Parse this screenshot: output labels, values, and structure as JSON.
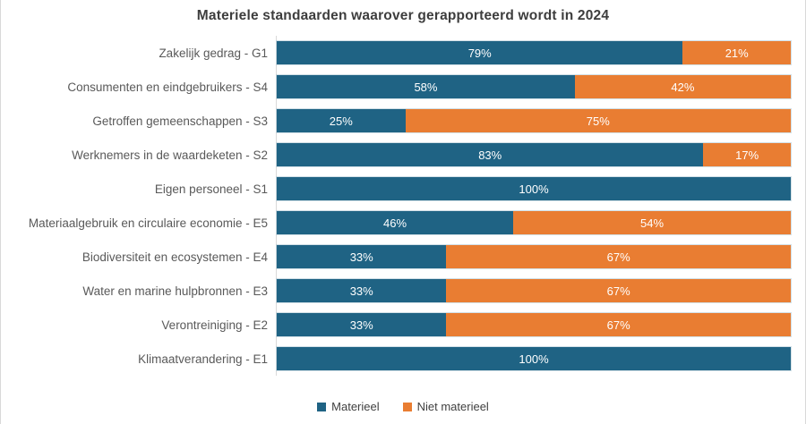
{
  "title": "Materiele standaarden waarover gerapporteerd wordt in 2024",
  "colors": {
    "materieel": "#1f6384",
    "niet_materieel": "#e97d32",
    "axis_line": "#d9d9d9",
    "label_text": "#595959",
    "title_text": "#3d3d3d",
    "value_text": "#ffffff"
  },
  "legend": {
    "items": [
      {
        "label": "Materieel",
        "color": "#1f6384"
      },
      {
        "label": "Niet materieel",
        "color": "#e97d32"
      }
    ]
  },
  "chart_data": {
    "type": "bar",
    "orientation": "horizontal",
    "stacked": true,
    "title": "Materiele standaarden waarover gerapporteerd wordt in 2024",
    "xlabel": "",
    "ylabel": "",
    "xlim": [
      0,
      100
    ],
    "grid": false,
    "legend_position": "bottom-center",
    "value_label_format": "{value}%",
    "categories": [
      "Zakelijk gedrag - G1",
      "Consumenten en eindgebruikers - S4",
      "Getroffen gemeenschappen - S3",
      "Werknemers in de waardeketen - S2",
      "Eigen personeel - S1",
      "Materiaalgebruik en circulaire economie - E5",
      "Biodiversiteit en ecosystemen - E4",
      "Water en marine hulpbronnen - E3",
      "Verontreiniging - E2",
      "Klimaatverandering - E1"
    ],
    "series": [
      {
        "name": "Materieel",
        "color": "#1f6384",
        "values": [
          79,
          58,
          25,
          83,
          100,
          46,
          33,
          33,
          33,
          100
        ]
      },
      {
        "name": "Niet materieel",
        "color": "#e97d32",
        "values": [
          21,
          42,
          75,
          17,
          0,
          54,
          67,
          67,
          67,
          0
        ]
      }
    ]
  }
}
